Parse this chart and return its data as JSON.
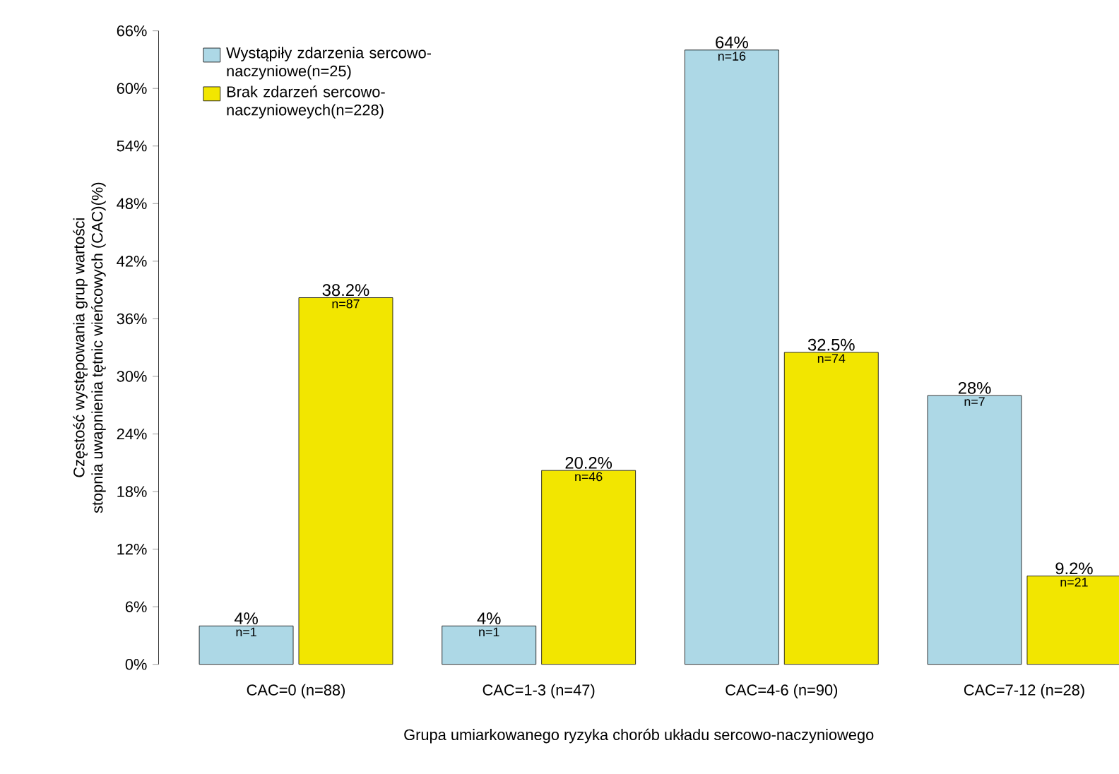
{
  "chart_data": {
    "type": "bar",
    "xlabel": "Grupa umiarkowanego ryzyka chorób układu sercowo-naczyniowego",
    "ylabel": "Częstość występowania grup wartości\nstopnia uwapnienia tętnic wieńcowych (CAC)(%)",
    "categories": [
      "CAC=0 (n=88)",
      "CAC=1-3 (n=47)",
      "CAC=4-6 (n=90)",
      "CAC=7-12 (n=28)"
    ],
    "series": [
      {
        "name": "Wystąpiły zdarzenia sercowo-naczyniowe(n=25)",
        "color": "#add8e6",
        "values": [
          4,
          4,
          64,
          28
        ],
        "value_labels": [
          "4%",
          "4%",
          "64%",
          "28%"
        ]
      },
      {
        "name": "Brak zdarzeń sercowo-naczynioweych(n=228)",
        "color": "#f2e600",
        "values": [
          38.2,
          20.2,
          32.5,
          9.2
        ],
        "value_labels": [
          "38.2%",
          "20.2%",
          "32.5%",
          "9.2%"
        ]
      }
    ],
    "annotations": [
      "n=1",
      "n=87",
      "n=1",
      "n=46",
      "n=16",
      "n=74",
      "n=7",
      "n=21"
    ],
    "ylim": [
      0,
      66
    ],
    "yticks": [
      {
        "value": 0,
        "label": "0%"
      },
      {
        "value": 6,
        "label": "6%"
      },
      {
        "value": 12,
        "label": "12%"
      },
      {
        "value": 18,
        "label": "18%"
      },
      {
        "value": 24,
        "label": "24%"
      },
      {
        "value": 30,
        "label": "30%"
      },
      {
        "value": 36,
        "label": "36%"
      },
      {
        "value": 42,
        "label": "42%"
      },
      {
        "value": 48,
        "label": "48%"
      },
      {
        "value": 54,
        "label": "54%"
      },
      {
        "value": 60,
        "label": "60%"
      },
      {
        "value": 66,
        "label": "66%"
      }
    ],
    "grid": false,
    "legend": "top left"
  }
}
